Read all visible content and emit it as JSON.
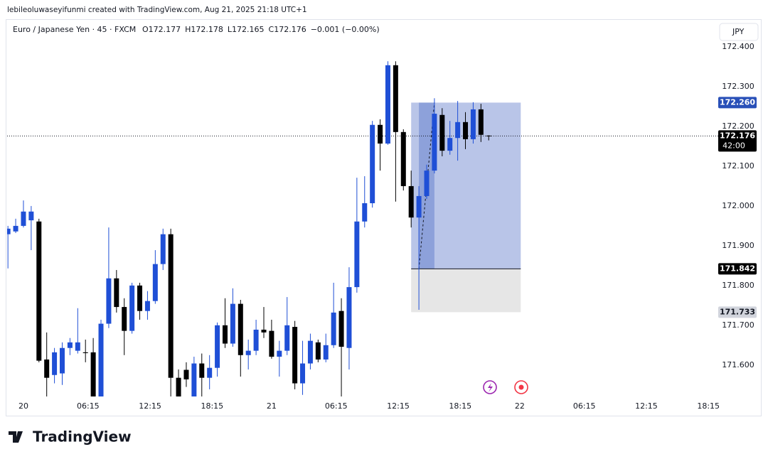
{
  "header": {
    "credit": "lebileoluwaseyifunmi created with TradingView.com, Aug 21, 2025 21:18 UTC+1"
  },
  "footer": {
    "brand": "TradingView"
  },
  "chart_data": {
    "type": "candlestick",
    "title": "Euro / Japanese Yen · 45 · FXCM",
    "legend": [
      "O172.177",
      "H172.178",
      "L172.165",
      "C172.176",
      "−0.001 (−0.00%)"
    ],
    "currency": "JPY",
    "up_color": "#1f4fd6",
    "down_color": "#000000",
    "x": [
      -1.5,
      -0.75,
      0,
      0.75,
      1.5,
      2.25,
      3,
      3.75,
      4.5,
      5.25,
      6,
      6.75,
      7.5,
      8.25,
      9,
      9.75,
      10.5,
      11.25,
      12,
      12.75,
      13.5,
      14.25,
      15,
      15.75,
      16.5,
      17.25,
      18,
      18.75,
      19.5,
      20.25,
      21,
      21.75,
      22.5,
      23.25,
      24,
      24.75,
      25.5,
      26.25,
      27,
      27.75,
      28.5,
      29.25,
      30,
      30.75,
      31.5,
      32.25,
      33,
      33.75,
      34.5,
      35.25,
      36,
      36.75,
      37.5,
      38.25,
      39,
      39.75,
      40.5,
      41.25,
      42,
      42.75,
      43.5,
      44.25,
      45
    ],
    "open": [
      171.929,
      171.936,
      171.95,
      171.964,
      171.961,
      171.614,
      171.575,
      171.579,
      171.643,
      171.636,
      171.632,
      171.632,
      171.521,
      171.704,
      171.818,
      171.746,
      171.686,
      171.8,
      171.736,
      171.761,
      171.854,
      171.929,
      171.568,
      171.588,
      171.521,
      171.604,
      171.568,
      171.593,
      171.7,
      171.654,
      171.754,
      171.625,
      171.636,
      171.689,
      171.686,
      171.621,
      171.636,
      171.696,
      171.554,
      171.604,
      171.657,
      171.614,
      171.65,
      171.736,
      171.643,
      171.796,
      171.961,
      172.007,
      172.204,
      172.157,
      172.354,
      172.186,
      172.05,
      171.971,
      172.025,
      172.089,
      172.229,
      172.139,
      172.171,
      172.211,
      172.168,
      172.243,
      172.177
    ],
    "high": [
      171.95,
      171.968,
      172.014,
      172.0,
      171.968,
      171.682,
      171.643,
      171.657,
      171.668,
      171.743,
      171.664,
      171.668,
      171.714,
      171.946,
      171.839,
      171.768,
      171.807,
      171.807,
      171.786,
      171.889,
      171.943,
      171.943,
      171.589,
      171.607,
      171.621,
      171.629,
      171.625,
      171.707,
      171.768,
      171.793,
      171.764,
      171.664,
      171.714,
      171.746,
      171.714,
      171.661,
      171.771,
      171.711,
      171.661,
      171.679,
      171.664,
      171.679,
      171.807,
      171.768,
      171.846,
      172.071,
      172.075,
      172.214,
      172.218,
      172.364,
      172.364,
      172.193,
      172.089,
      172.05,
      172.104,
      172.271,
      172.246,
      172.214,
      172.264,
      172.236,
      172.261,
      172.257,
      172.178
    ],
    "low": [
      171.843,
      171.932,
      171.946,
      171.889,
      171.607,
      171.521,
      171.554,
      171.55,
      171.625,
      171.629,
      171.607,
      171.515,
      171.515,
      171.693,
      171.732,
      171.625,
      171.679,
      171.714,
      171.714,
      171.754,
      171.839,
      171.515,
      171.515,
      171.545,
      171.515,
      171.515,
      171.539,
      171.571,
      171.643,
      171.646,
      171.571,
      171.589,
      171.625,
      171.668,
      171.616,
      171.571,
      171.625,
      171.539,
      171.525,
      171.589,
      171.607,
      171.607,
      171.643,
      171.515,
      171.589,
      171.782,
      171.946,
      171.996,
      172.089,
      172.154,
      172.011,
      172.039,
      171.946,
      171.739,
      172.018,
      172.082,
      172.125,
      172.129,
      172.114,
      172.143,
      172.157,
      172.161,
      172.165
    ],
    "close": [
      171.943,
      171.95,
      171.986,
      171.986,
      171.611,
      171.568,
      171.632,
      171.643,
      171.657,
      171.657,
      171.63,
      171.521,
      171.704,
      171.818,
      171.746,
      171.686,
      171.8,
      171.736,
      171.761,
      171.854,
      171.929,
      171.568,
      171.521,
      171.564,
      171.604,
      171.568,
      171.593,
      171.7,
      171.654,
      171.754,
      171.625,
      171.636,
      171.689,
      171.682,
      171.621,
      171.636,
      171.7,
      171.554,
      171.604,
      171.661,
      171.614,
      171.65,
      171.732,
      171.646,
      171.796,
      171.961,
      172.007,
      172.204,
      172.157,
      172.354,
      172.186,
      172.05,
      171.971,
      172.025,
      172.089,
      172.232,
      172.139,
      172.171,
      172.211,
      172.168,
      172.243,
      172.179,
      172.176
    ],
    "xlim": [
      -1.58,
      67.2
    ],
    "xticks": [
      {
        "value": 0,
        "label": "20"
      },
      {
        "value": 6.25,
        "label": "06:15"
      },
      {
        "value": 12.25,
        "label": "12:15"
      },
      {
        "value": 18.25,
        "label": "18:15"
      },
      {
        "value": 24,
        "label": "21"
      },
      {
        "value": 30.25,
        "label": "06:15"
      },
      {
        "value": 36.25,
        "label": "12:15"
      },
      {
        "value": 42.25,
        "label": "18:15"
      },
      {
        "value": 48,
        "label": "22"
      },
      {
        "value": 54.25,
        "label": "06:15"
      },
      {
        "value": 60.25,
        "label": "12:15"
      },
      {
        "value": 66.25,
        "label": "18:15"
      }
    ],
    "ylim": [
      171.521,
      172.468
    ],
    "yticks": [
      {
        "value": 172.4,
        "label": "172.400"
      },
      {
        "value": 172.3,
        "label": "172.300"
      },
      {
        "value": 172.2,
        "label": "172.200"
      },
      {
        "value": 172.1,
        "label": "172.100"
      },
      {
        "value": 172.0,
        "label": "172.000"
      },
      {
        "value": 171.9,
        "label": "171.900"
      },
      {
        "value": 171.8,
        "label": "171.800"
      },
      {
        "value": 171.7,
        "label": "171.700"
      },
      {
        "value": 171.6,
        "label": "171.600"
      }
    ],
    "current_price": {
      "value": 172.176,
      "countdown": "42:00"
    },
    "position": {
      "x": [
        37.5,
        48.1
      ],
      "hit_x": [
        38.25,
        39.75
      ],
      "color": "#2950b8",
      "target": {
        "value": 172.26,
        "label": "172.260"
      },
      "entry": {
        "value": 171.842,
        "label": "171.842"
      },
      "stop": {
        "value": 171.733,
        "label": "171.733"
      }
    }
  }
}
